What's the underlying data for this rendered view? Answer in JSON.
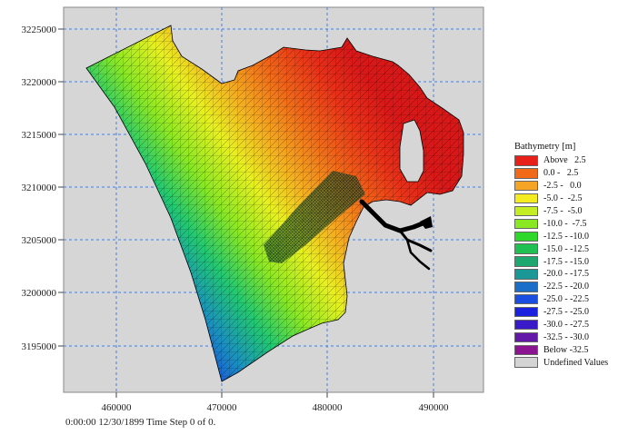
{
  "map": {
    "x_ticks": [
      "460000",
      "470000",
      "480000",
      "490000"
    ],
    "y_ticks": [
      "3225000",
      "3220000",
      "3215000",
      "3210000",
      "3205000",
      "3200000",
      "3195000"
    ]
  },
  "legend": {
    "title": "Bathymetry [m]",
    "items": [
      {
        "label": "Above   2.5",
        "color": "#e8201a"
      },
      {
        "label": "0.0 -   2.5",
        "color": "#f06a18"
      },
      {
        "label": "-2.5 -   0.0",
        "color": "#f6a424"
      },
      {
        "label": "-5.0 -  -2.5",
        "color": "#f4ec1e"
      },
      {
        "label": "-7.5 -  -5.0",
        "color": "#c4ee22"
      },
      {
        "label": "-10.0 -  -7.5",
        "color": "#8ae822"
      },
      {
        "label": "-12.5 - -10.0",
        "color": "#2ed82a"
      },
      {
        "label": "-15.0 - -12.5",
        "color": "#20c052"
      },
      {
        "label": "-17.5 - -15.0",
        "color": "#1ea870"
      },
      {
        "label": "-20.0 - -17.5",
        "color": "#1a9898"
      },
      {
        "label": "-22.5 - -20.0",
        "color": "#1a6ec8"
      },
      {
        "label": "-25.0 - -22.5",
        "color": "#1a4ee0"
      },
      {
        "label": "-27.5 - -25.0",
        "color": "#1a22e0"
      },
      {
        "label": "-30.0 - -27.5",
        "color": "#3a1ac8"
      },
      {
        "label": "-32.5 - -30.0",
        "color": "#6418a8"
      },
      {
        "label": "Below -32.5",
        "color": "#8c1490"
      },
      {
        "label": "Undefined Values",
        "color": "#d4d4d4"
      }
    ]
  },
  "status": {
    "text": "0:00:00 12/30/1899  Time Step 0 of 0."
  }
}
